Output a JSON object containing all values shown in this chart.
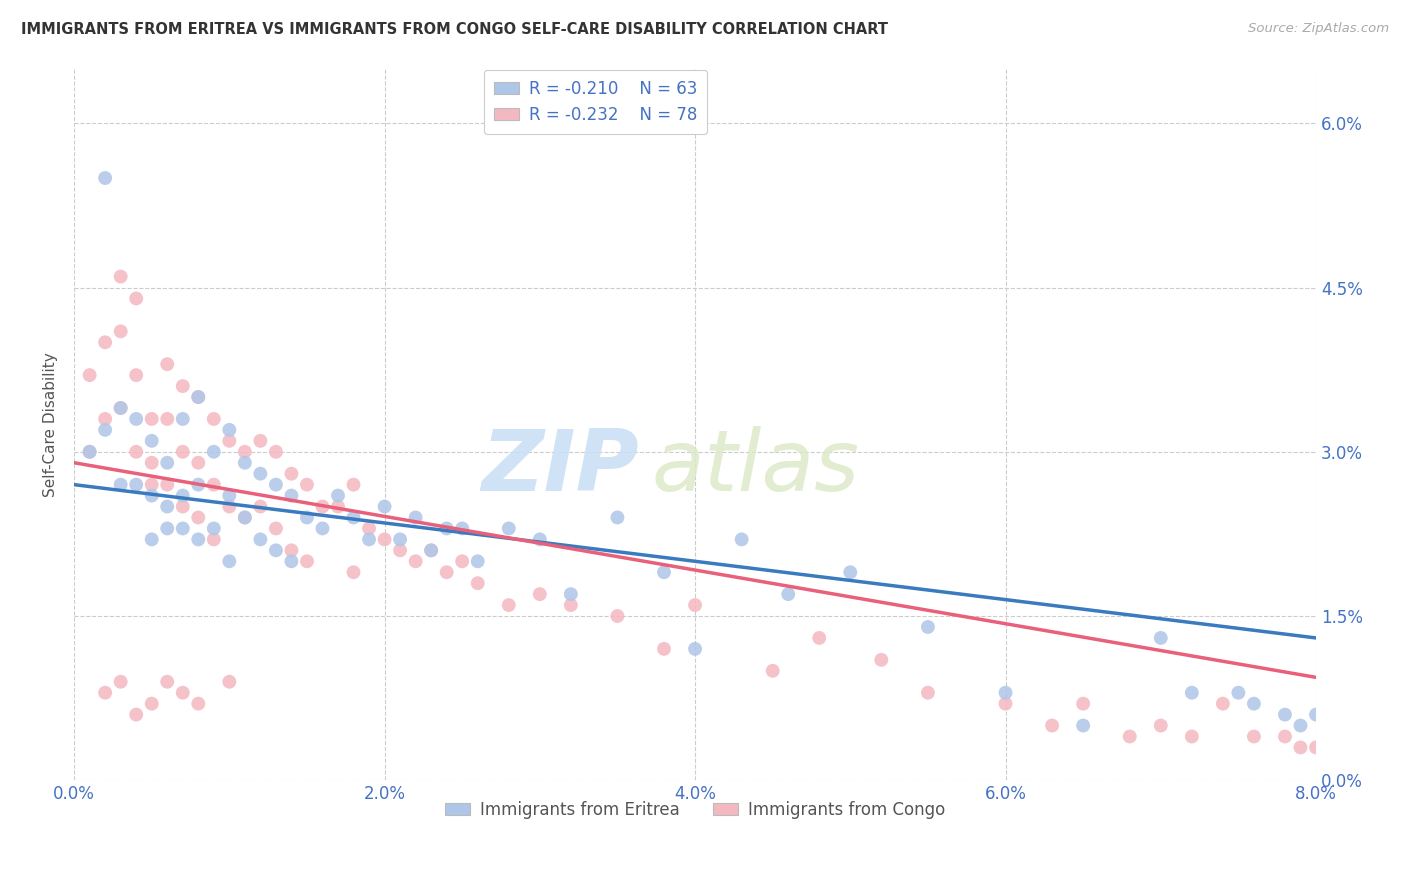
{
  "title": "IMMIGRANTS FROM ERITREA VS IMMIGRANTS FROM CONGO SELF-CARE DISABILITY CORRELATION CHART",
  "source": "Source: ZipAtlas.com",
  "ylabel": "Self-Care Disability",
  "xlabel_ticks": [
    "0.0%",
    "2.0%",
    "4.0%",
    "6.0%",
    "8.0%"
  ],
  "xlabel_vals": [
    0.0,
    0.02,
    0.04,
    0.06,
    0.08
  ],
  "ylabel_ticks": [
    "0.0%",
    "1.5%",
    "3.0%",
    "4.5%",
    "6.0%"
  ],
  "ylabel_vals": [
    0.0,
    0.015,
    0.03,
    0.045,
    0.06
  ],
  "xlim": [
    0.0,
    0.08
  ],
  "ylim": [
    0.0,
    0.065
  ],
  "eritrea_color": "#aec6e8",
  "congo_color": "#f4b8c1",
  "eritrea_line_color": "#3a7abf",
  "congo_line_color": "#e8607a",
  "eritrea_R": -0.21,
  "eritrea_N": 63,
  "congo_R": -0.232,
  "congo_N": 78,
  "eritrea_intercept": 0.027,
  "eritrea_slope": -0.175,
  "congo_intercept": 0.029,
  "congo_slope": -0.245,
  "background_color": "#ffffff",
  "grid_color": "#cccccc",
  "watermark_zip": "ZIP",
  "watermark_atlas": "atlas",
  "eritrea_x": [
    0.001,
    0.002,
    0.002,
    0.003,
    0.003,
    0.004,
    0.004,
    0.005,
    0.005,
    0.005,
    0.006,
    0.006,
    0.006,
    0.007,
    0.007,
    0.007,
    0.008,
    0.008,
    0.008,
    0.009,
    0.009,
    0.01,
    0.01,
    0.01,
    0.011,
    0.011,
    0.012,
    0.012,
    0.013,
    0.013,
    0.014,
    0.014,
    0.015,
    0.016,
    0.017,
    0.018,
    0.019,
    0.02,
    0.021,
    0.022,
    0.023,
    0.024,
    0.025,
    0.026,
    0.028,
    0.03,
    0.032,
    0.035,
    0.038,
    0.04,
    0.043,
    0.046,
    0.05,
    0.055,
    0.06,
    0.065,
    0.07,
    0.072,
    0.075,
    0.076,
    0.078,
    0.079,
    0.08
  ],
  "eritrea_y": [
    0.03,
    0.055,
    0.032,
    0.034,
    0.027,
    0.033,
    0.027,
    0.031,
    0.026,
    0.022,
    0.029,
    0.025,
    0.023,
    0.033,
    0.026,
    0.023,
    0.035,
    0.027,
    0.022,
    0.03,
    0.023,
    0.032,
    0.026,
    0.02,
    0.029,
    0.024,
    0.028,
    0.022,
    0.027,
    0.021,
    0.026,
    0.02,
    0.024,
    0.023,
    0.026,
    0.024,
    0.022,
    0.025,
    0.022,
    0.024,
    0.021,
    0.023,
    0.023,
    0.02,
    0.023,
    0.022,
    0.017,
    0.024,
    0.019,
    0.012,
    0.022,
    0.017,
    0.019,
    0.014,
    0.008,
    0.005,
    0.013,
    0.008,
    0.008,
    0.007,
    0.006,
    0.005,
    0.006
  ],
  "congo_x": [
    0.001,
    0.001,
    0.002,
    0.002,
    0.003,
    0.003,
    0.003,
    0.004,
    0.004,
    0.004,
    0.005,
    0.005,
    0.005,
    0.006,
    0.006,
    0.006,
    0.007,
    0.007,
    0.007,
    0.008,
    0.008,
    0.008,
    0.009,
    0.009,
    0.009,
    0.01,
    0.01,
    0.011,
    0.011,
    0.012,
    0.012,
    0.013,
    0.013,
    0.014,
    0.014,
    0.015,
    0.015,
    0.016,
    0.017,
    0.018,
    0.018,
    0.019,
    0.02,
    0.021,
    0.022,
    0.023,
    0.024,
    0.025,
    0.026,
    0.028,
    0.03,
    0.032,
    0.035,
    0.038,
    0.04,
    0.045,
    0.048,
    0.052,
    0.055,
    0.06,
    0.063,
    0.065,
    0.068,
    0.07,
    0.072,
    0.074,
    0.076,
    0.078,
    0.079,
    0.08,
    0.002,
    0.003,
    0.004,
    0.005,
    0.006,
    0.007,
    0.008,
    0.01
  ],
  "congo_y": [
    0.037,
    0.03,
    0.04,
    0.033,
    0.046,
    0.041,
    0.034,
    0.044,
    0.037,
    0.03,
    0.033,
    0.029,
    0.027,
    0.038,
    0.033,
    0.027,
    0.036,
    0.03,
    0.025,
    0.035,
    0.029,
    0.024,
    0.033,
    0.027,
    0.022,
    0.031,
    0.025,
    0.03,
    0.024,
    0.031,
    0.025,
    0.03,
    0.023,
    0.028,
    0.021,
    0.027,
    0.02,
    0.025,
    0.025,
    0.027,
    0.019,
    0.023,
    0.022,
    0.021,
    0.02,
    0.021,
    0.019,
    0.02,
    0.018,
    0.016,
    0.017,
    0.016,
    0.015,
    0.012,
    0.016,
    0.01,
    0.013,
    0.011,
    0.008,
    0.007,
    0.005,
    0.007,
    0.004,
    0.005,
    0.004,
    0.007,
    0.004,
    0.004,
    0.003,
    0.003,
    0.008,
    0.009,
    0.006,
    0.007,
    0.009,
    0.008,
    0.007,
    0.009
  ]
}
